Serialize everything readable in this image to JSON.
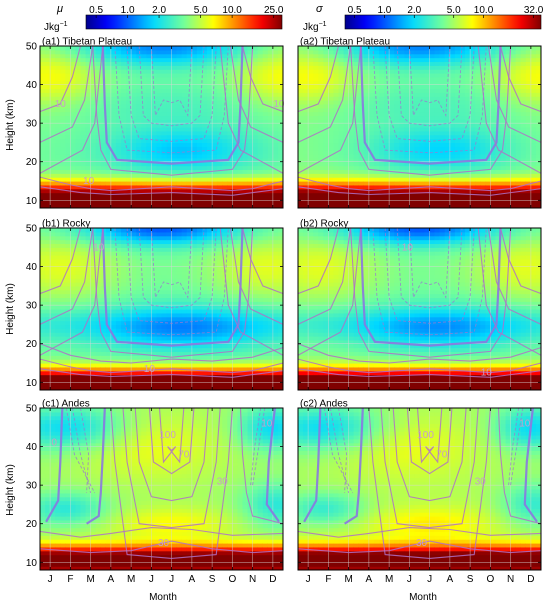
{
  "chart_data": {
    "type": "heatmap",
    "xlabel": "Month",
    "ylabel": "Height (km)",
    "x_ticks": [
      "J",
      "F",
      "M",
      "A",
      "M",
      "J",
      "J",
      "A",
      "S",
      "O",
      "N",
      "D"
    ],
    "y_ticks": [
      10,
      20,
      30,
      40,
      50
    ],
    "ylim": [
      8,
      50
    ],
    "grid": true,
    "colorbars": [
      {
        "symbol": "μ",
        "unit_main": "Jkg",
        "unit_exp": "−1",
        "ticks": [
          "0.5",
          "1.0",
          "2.0",
          "5.0",
          "10.0",
          "25.0"
        ],
        "tick_values": [
          0.5,
          1.0,
          2.0,
          5.0,
          10.0,
          25.0
        ],
        "scale": "log",
        "range": [
          0.4,
          30
        ]
      },
      {
        "symbol": "σ",
        "unit_main": "Jkg",
        "unit_exp": "−1",
        "ticks": [
          "0.5",
          "1.0",
          "2.0",
          "5.0",
          "10.0",
          "32.0"
        ],
        "tick_values": [
          0.5,
          1.0,
          2.0,
          5.0,
          10.0,
          32.0
        ],
        "scale": "log",
        "range": [
          0.4,
          38
        ]
      }
    ],
    "panels": [
      {
        "id": "a1",
        "title": "(a1) Tibetan Plateau",
        "statistic": "mu",
        "region": "tibet",
        "contour_labels": [
          {
            "text": "10",
            "month": 0.5,
            "height": 35
          },
          {
            "text": "10",
            "month": 11.3,
            "height": 35
          },
          {
            "text": "10",
            "month": 1.9,
            "height": 15
          }
        ]
      },
      {
        "id": "a2",
        "title": "(a2) Tibetan Plateau",
        "statistic": "sigma",
        "region": "tibet",
        "contour_labels": []
      },
      {
        "id": "b1",
        "title": "(b1) Rocky",
        "statistic": "mu",
        "region": "rocky",
        "contour_labels": [
          {
            "text": "10",
            "month": 2.4,
            "height": 45
          },
          {
            "text": "10",
            "month": 4.9,
            "height": 13.5
          }
        ]
      },
      {
        "id": "b2",
        "title": "(b2) Rocky",
        "statistic": "sigma",
        "region": "rocky",
        "contour_labels": [
          {
            "text": "10",
            "month": 4.9,
            "height": 45
          },
          {
            "text": "10",
            "month": 8.8,
            "height": 12.5
          }
        ]
      },
      {
        "id": "c1",
        "title": "(c1) Andes",
        "statistic": "mu",
        "region": "andes",
        "contour_labels": [
          {
            "text": "0",
            "month": 0.2,
            "height": 41
          },
          {
            "text": "100",
            "month": 5.8,
            "height": 43
          },
          {
            "text": "70",
            "month": 6.6,
            "height": 38
          },
          {
            "text": "30",
            "month": 8.5,
            "height": 31
          },
          {
            "text": "30",
            "month": 5.6,
            "height": 15
          },
          {
            "text": "10",
            "month": 10.7,
            "height": 46
          }
        ]
      },
      {
        "id": "c2",
        "title": "(c2) Andes",
        "statistic": "sigma",
        "region": "andes",
        "contour_labels": [
          {
            "text": "100",
            "month": 5.8,
            "height": 43
          },
          {
            "text": "70",
            "month": 6.6,
            "height": 38
          },
          {
            "text": "30",
            "month": 8.5,
            "height": 31
          },
          {
            "text": "30",
            "month": 5.6,
            "height": 15
          },
          {
            "text": "10",
            "month": 10.7,
            "height": 46
          }
        ]
      }
    ]
  },
  "colors": {
    "contour_solid": "#b070c8",
    "contour_zero": "#8a78e0",
    "contour_dashed": "#9a7ad0",
    "grid": "#d8d8d8",
    "label": "#c79fc8"
  }
}
